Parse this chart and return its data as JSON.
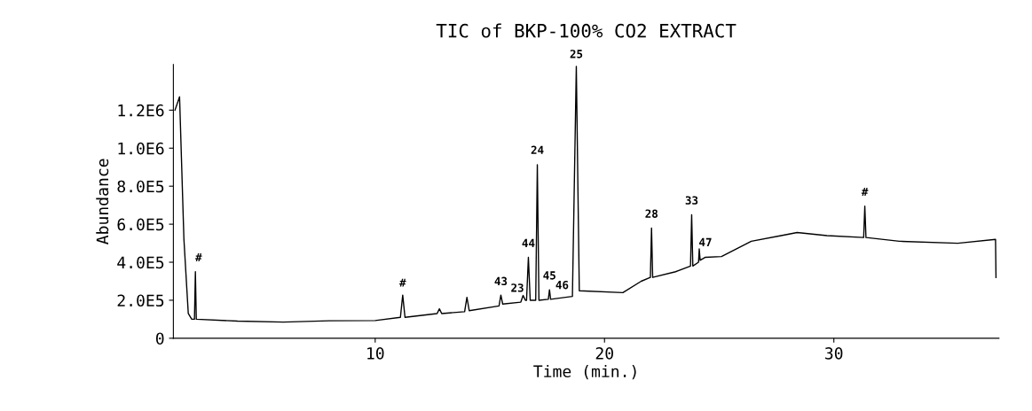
{
  "chart_data": {
    "type": "line",
    "title": "TIC of BKP-100% CO2 EXTRACT",
    "xlabel": "Time (min.)",
    "ylabel": "Abundance",
    "xlim": [
      1.2,
      37.2
    ],
    "xticks": [
      10,
      20,
      30
    ],
    "ylim": [
      0,
      1440000
    ],
    "yticks": [
      {
        "value": 0,
        "label": "0"
      },
      {
        "value": 200000,
        "label": "2.0E5"
      },
      {
        "value": 400000,
        "label": "4.0E5"
      },
      {
        "value": 600000,
        "label": "6.0E5"
      },
      {
        "value": 800000,
        "label": "8.0E5"
      },
      {
        "value": 1000000,
        "label": "1.0E6"
      },
      {
        "value": 1200000,
        "label": "1.2E6"
      }
    ],
    "grid": false,
    "marker": "none",
    "line_style": "solid",
    "series": [
      {
        "color": "#000000",
        "x": [
          1.27,
          1.47,
          1.66,
          1.85,
          2.0,
          2.12,
          2.16,
          2.2,
          4,
          6,
          8,
          10,
          11.1,
          11.2,
          11.3,
          12.7,
          12.8,
          12.9,
          13.9,
          14.0,
          14.1,
          15.4,
          15.48,
          15.56,
          16.35,
          16.45,
          16.55,
          16.6,
          16.68,
          16.76,
          17.0,
          17.07,
          17.14,
          17.55,
          17.6,
          17.65,
          18.6,
          18.77,
          18.9,
          20.8,
          21.6,
          22.0,
          22.05,
          22.1,
          23.1,
          23.75,
          23.8,
          23.85,
          24.1,
          24.13,
          24.17,
          24.4,
          25.1,
          26.4,
          27.7,
          28.4,
          29.7,
          31.3,
          31.35,
          31.4,
          32.86,
          35.4,
          37.05,
          37.07
        ],
        "values": [
          1200000,
          1270000,
          520000,
          130000,
          100000,
          100000,
          350000,
          100000,
          90000,
          85000,
          92000,
          93000,
          110000,
          227000,
          110000,
          130000,
          155000,
          130000,
          140000,
          215000,
          145000,
          170000,
          227000,
          180000,
          190000,
          225000,
          200000,
          200000,
          426000,
          200000,
          200000,
          913000,
          200000,
          205000,
          255000,
          205000,
          220000,
          1430000,
          250000,
          240000,
          300000,
          320000,
          580000,
          320000,
          350000,
          380000,
          650000,
          380000,
          400000,
          470000,
          410000,
          426000,
          430000,
          510000,
          540000,
          556000,
          540000,
          530000,
          695000,
          530000,
          510000,
          500000,
          520000,
          320000
        ]
      }
    ],
    "annotations": [
      {
        "text": "#",
        "x": 2.3,
        "y": 360000
      },
      {
        "text": "#",
        "x": 11.2,
        "y": 227000
      },
      {
        "text": "43",
        "x": 15.48,
        "y": 235000
      },
      {
        "text": "23",
        "x": 16.2,
        "y": 200000
      },
      {
        "text": "44",
        "x": 16.68,
        "y": 435000
      },
      {
        "text": "24",
        "x": 17.07,
        "y": 925000
      },
      {
        "text": "45",
        "x": 17.6,
        "y": 265000
      },
      {
        "text": "46",
        "x": 18.15,
        "y": 215000
      },
      {
        "text": "25",
        "x": 18.77,
        "y": 1430000
      },
      {
        "text": "28",
        "x": 22.05,
        "y": 590000
      },
      {
        "text": "33",
        "x": 23.8,
        "y": 660000
      },
      {
        "text": "47",
        "x": 24.4,
        "y": 440000
      },
      {
        "text": "#",
        "x": 31.35,
        "y": 705000
      }
    ]
  }
}
